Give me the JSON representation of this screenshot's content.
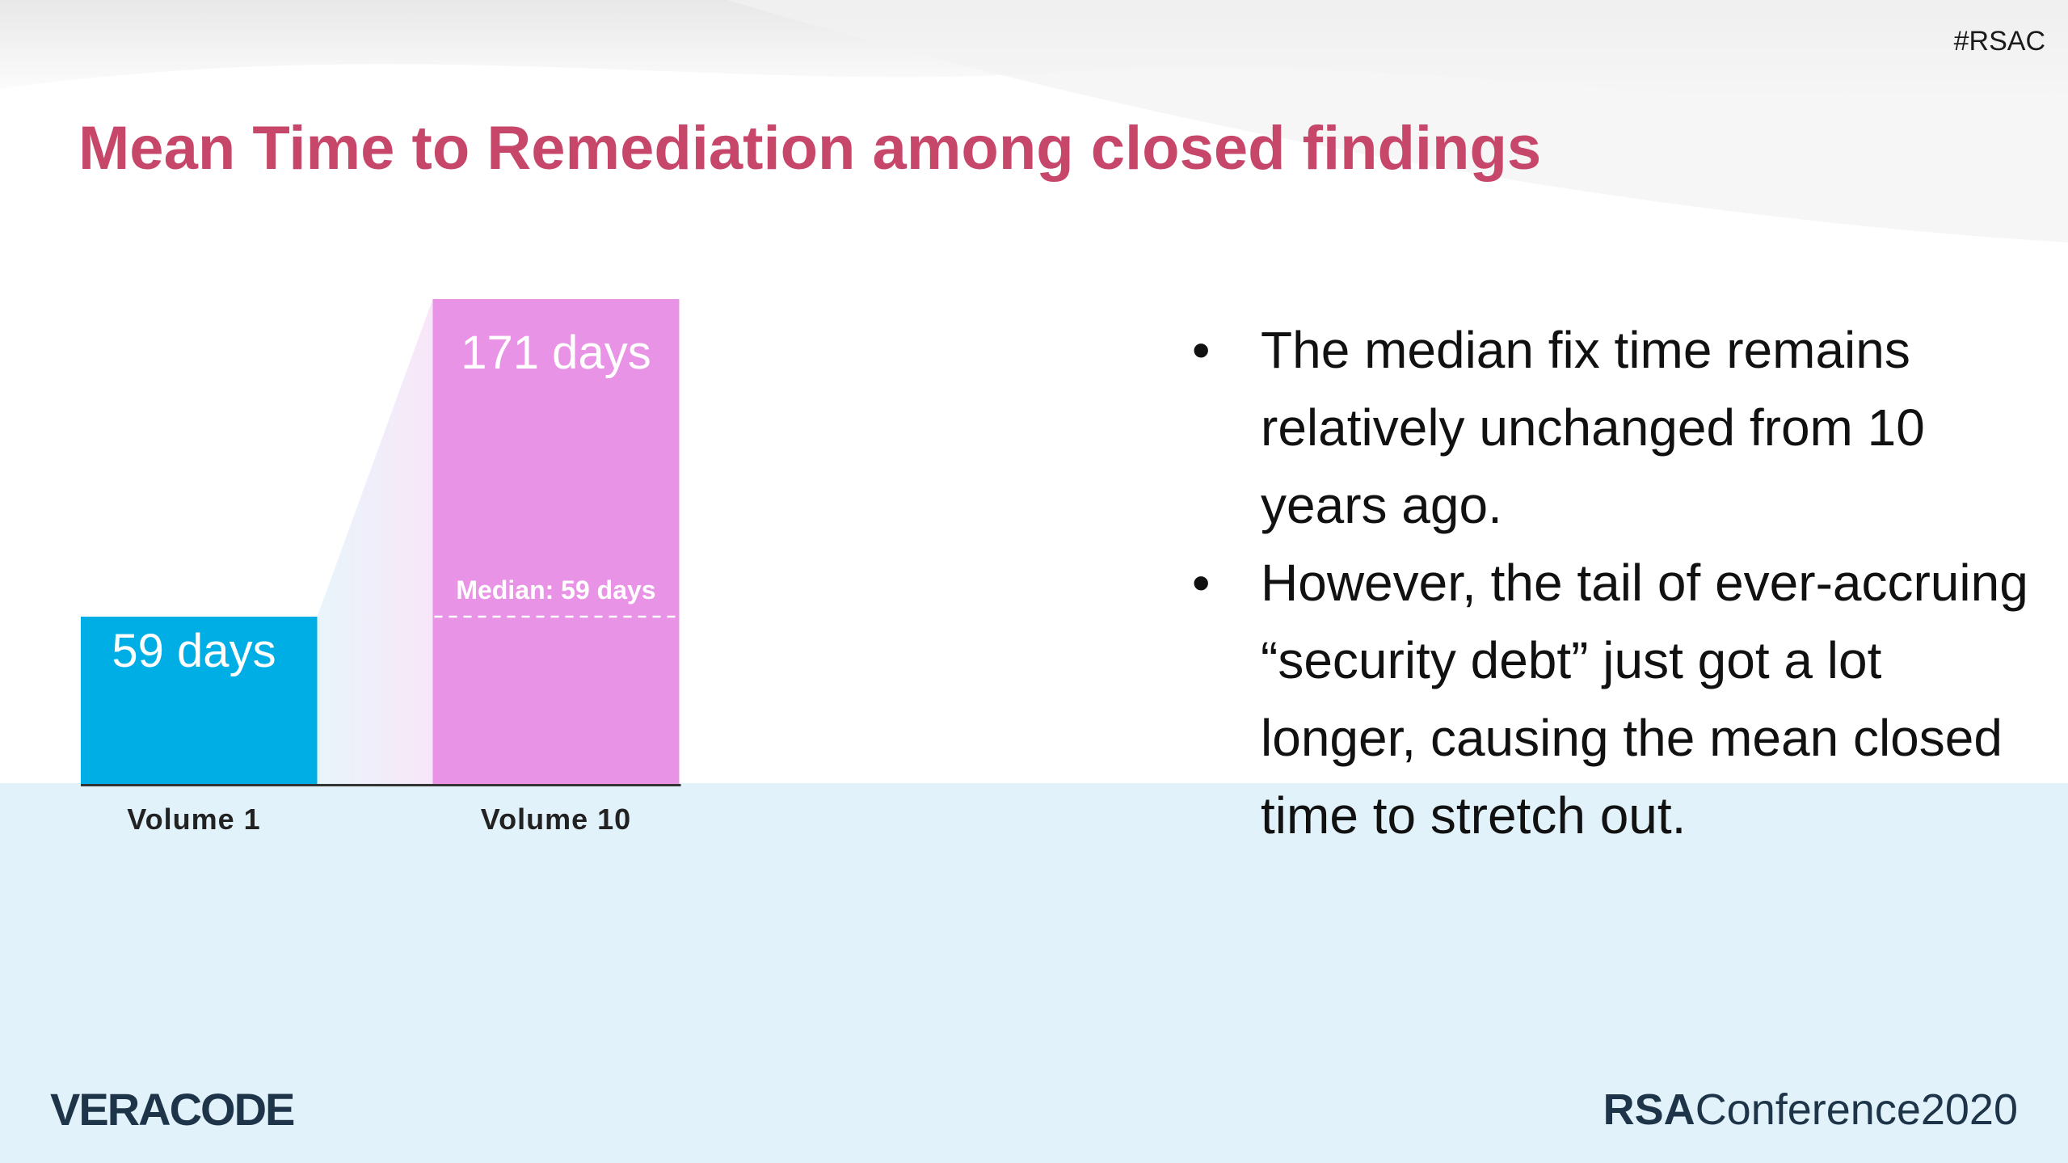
{
  "slide": {
    "hashtag": "#RSAC",
    "title": "Mean Time to Remediation among closed findings",
    "bullets": [
      "The median fix time remains relatively unchanged from 10 years ago.",
      "However, the tail of ever-accruing “security debt” just got a lot longer, causing the mean closed time to stretch out."
    ],
    "bullet_symbol": "•",
    "logos": {
      "veracode": "VERACODE",
      "rsa_prefix": "RSA",
      "rsa_suffix": "Conference2020"
    },
    "colors": {
      "title": "#c7476a",
      "footer_band": "#e1f2fa",
      "bar_volume1": "#00aee6",
      "bar_volume10": "#e893e5"
    }
  },
  "chart_data": {
    "type": "bar",
    "categories": [
      "Volume 1",
      "Volume 10"
    ],
    "values": [
      59,
      171
    ],
    "data_labels": [
      "59 days",
      "171 days"
    ],
    "annotations": [
      {
        "category": "Volume 10",
        "label": "Median: 59 days",
        "value": 59
      }
    ],
    "ylim": [
      0,
      171
    ],
    "grid": false,
    "legend": "none"
  }
}
